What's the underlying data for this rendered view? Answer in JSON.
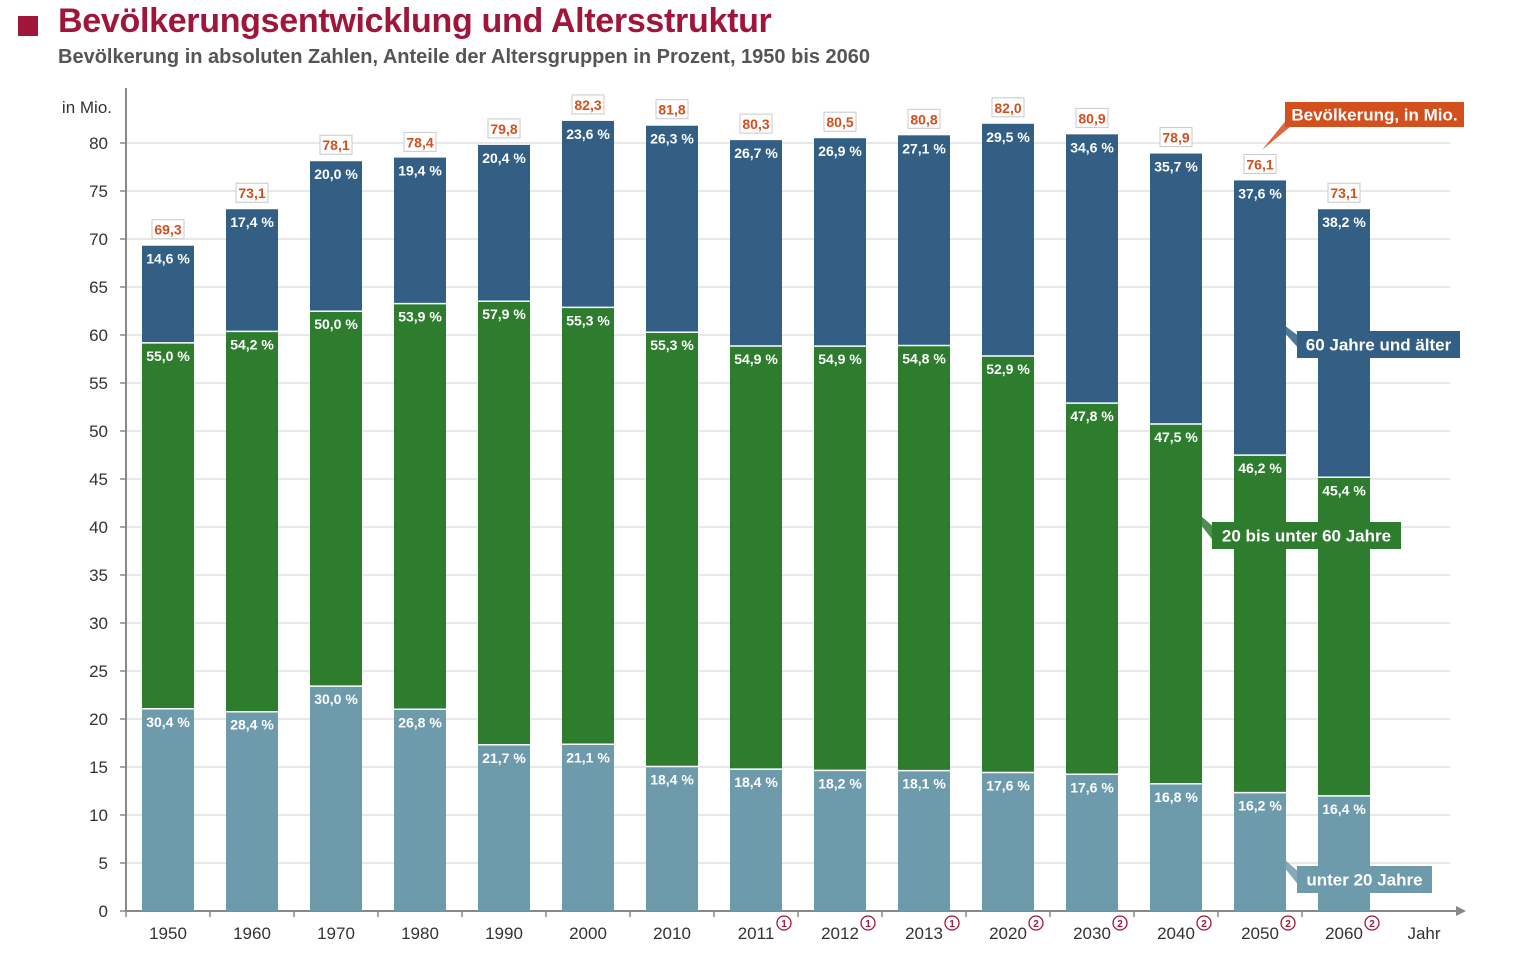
{
  "header": {
    "title": "Bevölkerungsentwicklung und Altersstruktur",
    "subtitle": "Bevölkerung in absoluten Zahlen, Anteile der Altersgruppen in Prozent, 1950 bis 2060"
  },
  "colors": {
    "title": "#a0163a",
    "old": "#335f84",
    "mid": "#2e7d2e",
    "young": "#6e9bab",
    "total_label": "#d2501e",
    "grid": "#d0d0d0",
    "axis": "#888888",
    "footnote": "#a0163a"
  },
  "chart_data": {
    "type": "bar",
    "stacked": true,
    "ylabel": "in Mio.",
    "xlabel": "Jahr",
    "ylim": [
      0,
      80
    ],
    "yticks": [
      0,
      5,
      10,
      15,
      20,
      25,
      30,
      35,
      40,
      45,
      50,
      55,
      60,
      65,
      70,
      75,
      80
    ],
    "grid": true,
    "categories": [
      "1950",
      "1960",
      "1970",
      "1980",
      "1990",
      "2000",
      "2010",
      "2011",
      "2012",
      "2013",
      "2020",
      "2030",
      "2040",
      "2050",
      "2060"
    ],
    "footnotes": [
      "",
      "",
      "",
      "",
      "",
      "",
      "",
      "1",
      "1",
      "1",
      "2",
      "2",
      "2",
      "2",
      "2"
    ],
    "totals": [
      69.3,
      73.1,
      78.1,
      78.4,
      79.8,
      82.3,
      81.8,
      80.3,
      80.5,
      80.8,
      82.0,
      80.9,
      78.9,
      76.1,
      73.1
    ],
    "total_labels": [
      "69,3",
      "73,1",
      "78,1",
      "78,4",
      "79,8",
      "82,3",
      "81,8",
      "80,3",
      "80,5",
      "80,8",
      "82,0",
      "80,9",
      "78,9",
      "76,1",
      "73,1"
    ],
    "series": [
      {
        "name": "unter 20 Jahre",
        "percent": [
          30.4,
          28.4,
          30.0,
          26.8,
          21.7,
          21.1,
          18.4,
          18.4,
          18.2,
          18.1,
          17.6,
          17.6,
          16.8,
          16.2,
          16.4
        ],
        "labels": [
          "30,4 %",
          "28,4 %",
          "30,0 %",
          "26,8 %",
          "21,7 %",
          "21,1 %",
          "18,4 %",
          "18,4 %",
          "18,2 %",
          "18,1 %",
          "17,6 %",
          "17,6 %",
          "16,8 %",
          "16,2 %",
          "16,4 %"
        ]
      },
      {
        "name": "20 bis unter 60 Jahre",
        "percent": [
          55.0,
          54.2,
          50.0,
          53.9,
          57.9,
          55.3,
          55.3,
          54.9,
          54.9,
          54.8,
          52.9,
          47.8,
          47.5,
          46.2,
          45.4
        ],
        "labels": [
          "55,0 %",
          "54,2 %",
          "50,0 %",
          "53,9 %",
          "57,9 %",
          "55,3 %",
          "55,3 %",
          "54,9 %",
          "54,9 %",
          "54,8 %",
          "52,9 %",
          "47,8 %",
          "47,5 %",
          "46,2 %",
          "45,4 %"
        ]
      },
      {
        "name": "60 Jahre und älter",
        "percent": [
          14.6,
          17.4,
          20.0,
          19.4,
          20.4,
          23.6,
          26.3,
          26.7,
          26.9,
          27.1,
          29.5,
          34.6,
          35.7,
          37.6,
          38.2
        ],
        "labels": [
          "14,6 %",
          "17,4 %",
          "20,0 %",
          "19,4 %",
          "20,4 %",
          "23,6 %",
          "26,3 %",
          "26,7 %",
          "26,9 %",
          "27,1 %",
          "29,5 %",
          "34,6 %",
          "35,7 %",
          "37,6 %",
          "38,2 %"
        ]
      }
    ],
    "legend": {
      "total": "Bevölkerung, in Mio.",
      "old": "60 Jahre und älter",
      "mid": "20 bis unter 60 Jahre",
      "young": "unter 20 Jahre"
    }
  }
}
